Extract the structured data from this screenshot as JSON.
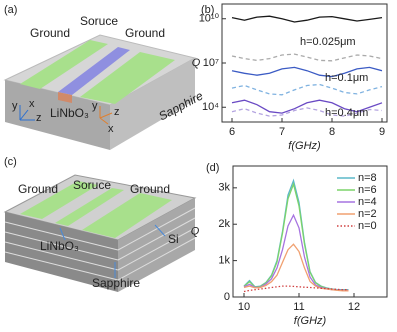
{
  "panel_a": {
    "label": "(a)",
    "ground_left": "Ground",
    "source": "Soruce",
    "ground_right": "Ground",
    "material": "LiNbO₃",
    "substrate": "Sapphire",
    "axes_blue": [
      "y",
      "z",
      "x"
    ],
    "axes_orange": [
      "y",
      "z",
      "x"
    ]
  },
  "panel_b": {
    "label": "(b)"
  },
  "panel_c": {
    "label": "(c)",
    "ground_left": "Ground",
    "source": "Soruce",
    "ground_right": "Ground",
    "material": "LiNbO₃",
    "layer": "Si",
    "substrate": "Sapphire"
  },
  "panel_d": {
    "label": "(d)"
  },
  "chart_data": [
    {
      "type": "line",
      "ylabel": "Q",
      "xlabel": "f(GHz)",
      "log_y": true,
      "x": [
        6,
        6.25,
        6.5,
        6.75,
        7,
        7.25,
        7.5,
        7.75,
        8,
        8.25,
        8.5,
        8.75,
        9
      ],
      "xlim": [
        5.8,
        9.1
      ],
      "xticks": [
        6,
        7,
        8,
        9
      ],
      "ylim": [
        1000,
        100000000000
      ],
      "yticks": [
        {
          "value": 10000,
          "label": "10⁴"
        },
        {
          "value": 10000000,
          "label": "10⁷"
        },
        {
          "value": 10000000000,
          "label": "10¹⁰"
        }
      ],
      "series": [
        {
          "color": "#1a1a1a",
          "linestyle": "solid",
          "values": [
            12000000000,
            8000000000,
            13000000000,
            15000000000,
            10000000000,
            6000000000,
            8000000000,
            13000000000,
            14000000000,
            10000000000,
            7000000000,
            9000000000,
            12000000000
          ]
        },
        {
          "color": "#aaaaaa",
          "linestyle": "dashed",
          "values": [
            30000000,
            20000000,
            15000000,
            20000000,
            35000000,
            40000000,
            25000000,
            15000000,
            14000000,
            22000000,
            35000000,
            30000000,
            20000000
          ]
        },
        {
          "color": "#3b5bc4",
          "linestyle": "solid",
          "values": [
            3000000,
            2000000,
            1500000,
            2000000,
            4000000,
            5000000,
            3000000,
            1500000,
            1200000,
            2000000,
            4000000,
            5000000,
            3000000
          ]
        },
        {
          "color": "#7fb2e0",
          "linestyle": "dashed",
          "values": [
            200000,
            300000,
            150000,
            80000,
            70000,
            150000,
            300000,
            350000,
            200000,
            100000,
            80000,
            150000,
            250000
          ]
        },
        {
          "color": "#6a4ac4",
          "linestyle": "solid",
          "values": [
            20000,
            30000,
            15000,
            5000,
            4000,
            8000,
            20000,
            30000,
            20000,
            8000,
            5000,
            10000,
            20000
          ]
        },
        {
          "color": "#b4a4e0",
          "linestyle": "dashed",
          "values": [
            5000,
            8000,
            4000,
            2500,
            3000,
            6000,
            9000,
            6000,
            3000,
            2500,
            4000,
            7000,
            6000
          ]
        }
      ],
      "annotations": [
        {
          "text": "h=0.025μm",
          "color": "#666666"
        },
        {
          "text": "h=0.1μm",
          "color": "#3b5bc4"
        },
        {
          "text": "h=0.4μm",
          "color": "#6a4ac4"
        }
      ]
    },
    {
      "type": "line",
      "ylabel": "Q",
      "xlabel": "f(GHz)",
      "log_y": false,
      "x": [
        10,
        10.1,
        10.2,
        10.3,
        10.4,
        10.5,
        10.6,
        10.7,
        10.8,
        10.9,
        11,
        11.1,
        11.2,
        11.3,
        11.4,
        11.5,
        11.6,
        11.7,
        11.8,
        11.9
      ],
      "xlim": [
        9.8,
        12.6
      ],
      "xticks": [
        10,
        11,
        12
      ],
      "ylim": [
        0,
        3600
      ],
      "yticks": [
        0,
        {
          "value": 1000,
          "label": "1k"
        },
        {
          "value": 2000,
          "label": "2k"
        },
        {
          "value": 3000,
          "label": "3k"
        }
      ],
      "legend": "upper right",
      "series": [
        {
          "name": "n=8",
          "color": "#5bb8c8",
          "linestyle": "solid",
          "values": [
            300,
            450,
            280,
            300,
            400,
            600,
            1000,
            1800,
            2800,
            3200,
            2600,
            1500,
            700,
            400,
            300,
            250,
            220,
            200,
            200,
            200
          ]
        },
        {
          "name": "n=6",
          "color": "#7cd36a",
          "linestyle": "solid",
          "values": [
            290,
            420,
            270,
            290,
            390,
            580,
            960,
            1750,
            2700,
            3100,
            2500,
            1450,
            680,
            390,
            290,
            240,
            210,
            190,
            190,
            190
          ]
        },
        {
          "name": "n=4",
          "color": "#a673e0",
          "linestyle": "solid",
          "values": [
            280,
            350,
            260,
            270,
            360,
            500,
            800,
            1300,
            1950,
            2250,
            1900,
            1100,
            550,
            330,
            260,
            230,
            200,
            190,
            180,
            180
          ]
        },
        {
          "name": "n=2",
          "color": "#f0a070",
          "linestyle": "solid",
          "values": [
            260,
            300,
            250,
            260,
            320,
            420,
            600,
            950,
            1300,
            1450,
            1250,
            800,
            430,
            300,
            240,
            220,
            200,
            180,
            170,
            170
          ]
        },
        {
          "name": "n=0",
          "color": "#d04040",
          "linestyle": "dotted",
          "values": [
            150,
            180,
            200,
            220,
            240,
            260,
            280,
            300,
            300,
            290,
            280,
            270,
            260,
            250,
            240,
            230,
            220,
            210,
            200,
            200
          ]
        }
      ]
    }
  ]
}
